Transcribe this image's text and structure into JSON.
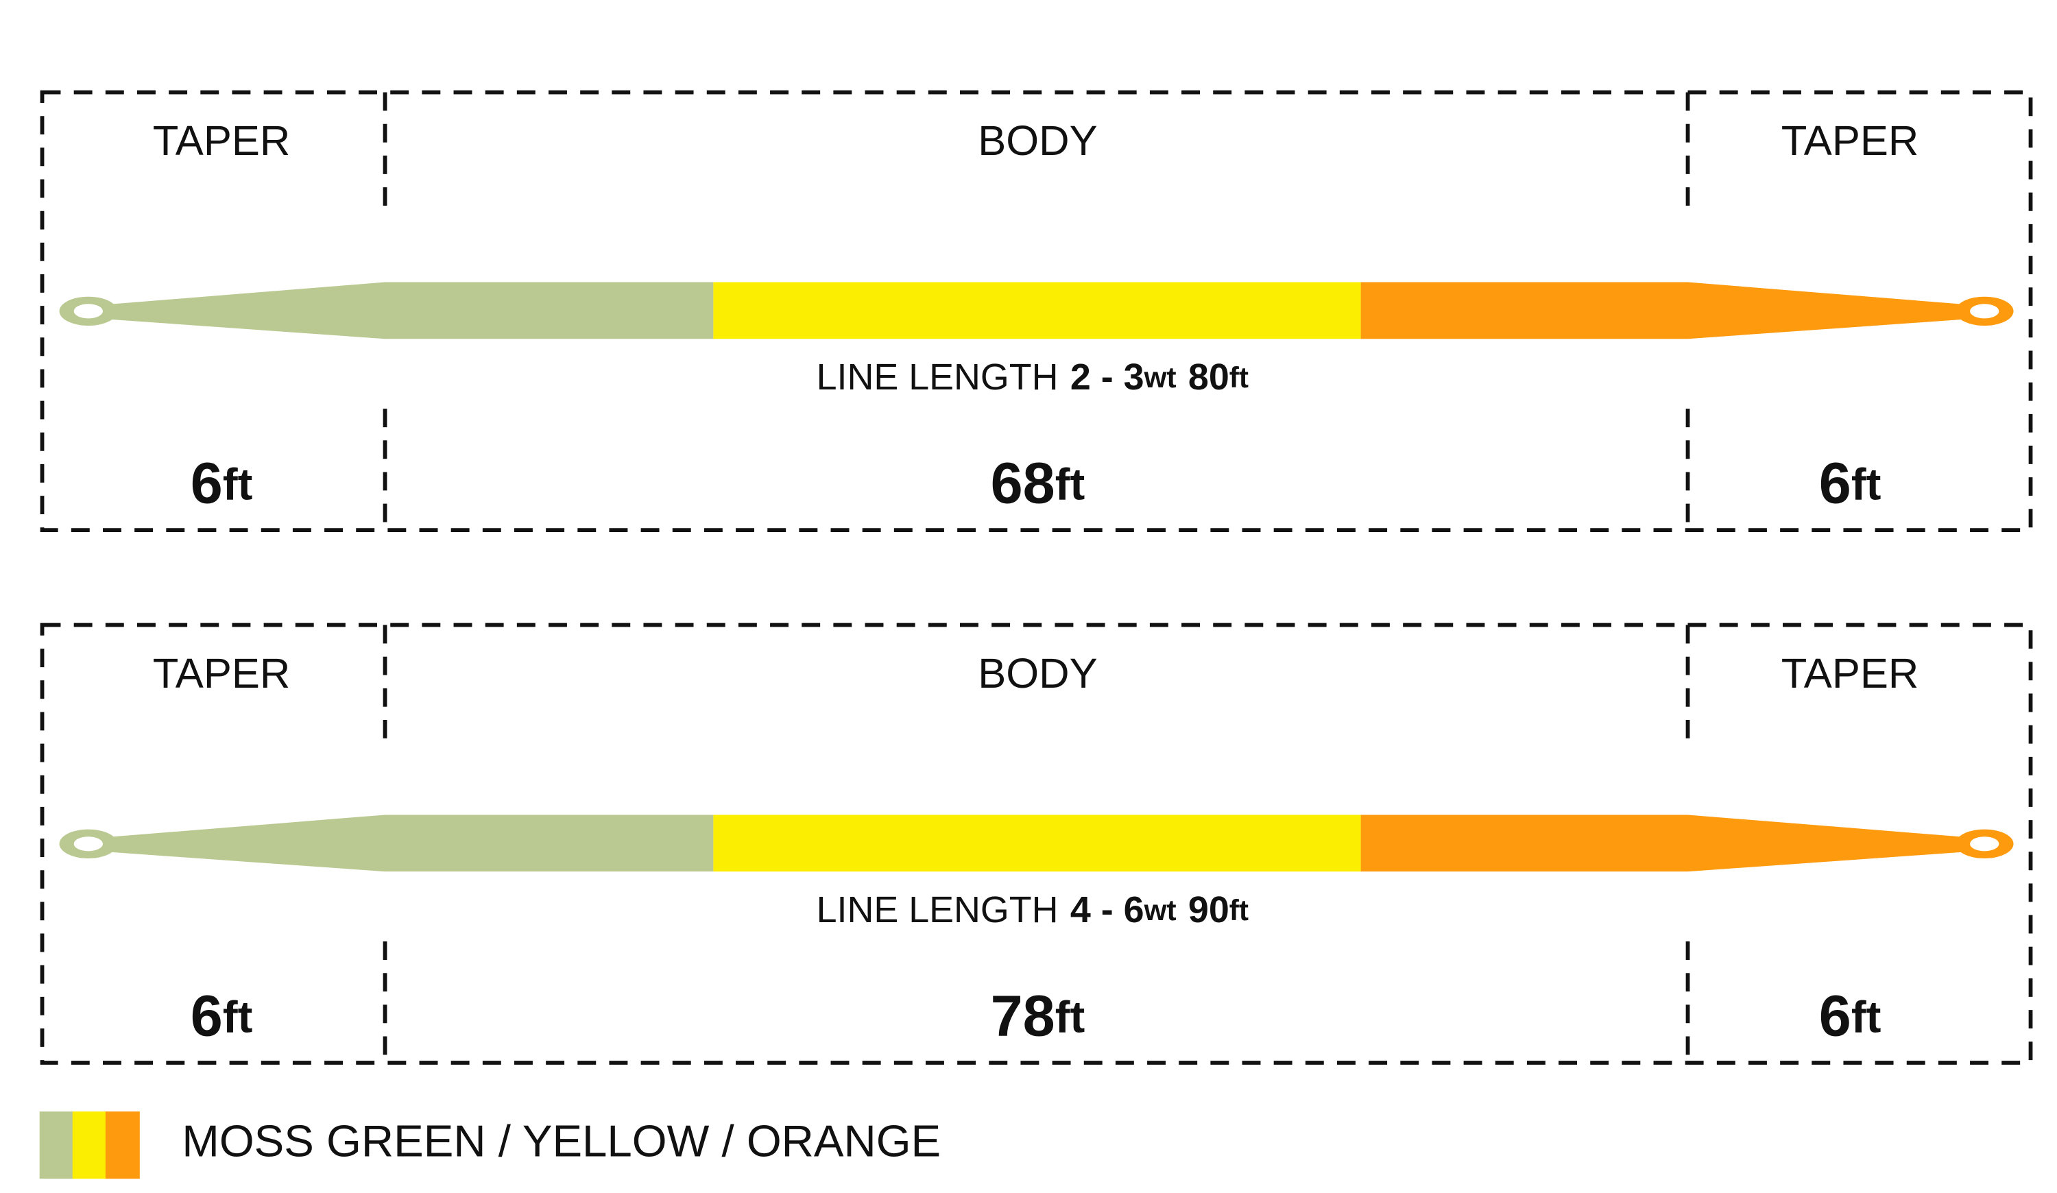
{
  "diagrams": [
    {
      "sections": [
        {
          "label": "TAPER",
          "length": "6",
          "unit": "ft"
        },
        {
          "label": "BODY",
          "length": "68",
          "unit": "ft"
        },
        {
          "label": "TAPER",
          "length": "6",
          "unit": "ft"
        }
      ],
      "line_length": {
        "prefix": "LINE LENGTH",
        "weights": "2 - 3",
        "weight_unit": "wt",
        "length": "80",
        "length_unit": "ft"
      }
    },
    {
      "sections": [
        {
          "label": "TAPER",
          "length": "6",
          "unit": "ft"
        },
        {
          "label": "BODY",
          "length": "78",
          "unit": "ft"
        },
        {
          "label": "TAPER",
          "length": "6",
          "unit": "ft"
        }
      ],
      "line_length": {
        "prefix": "LINE LENGTH",
        "weights": "4 - 6",
        "weight_unit": "wt",
        "length": "90",
        "length_unit": "ft"
      }
    }
  ],
  "legend": {
    "label": "MOSS GREEN / YELLOW / ORANGE"
  }
}
